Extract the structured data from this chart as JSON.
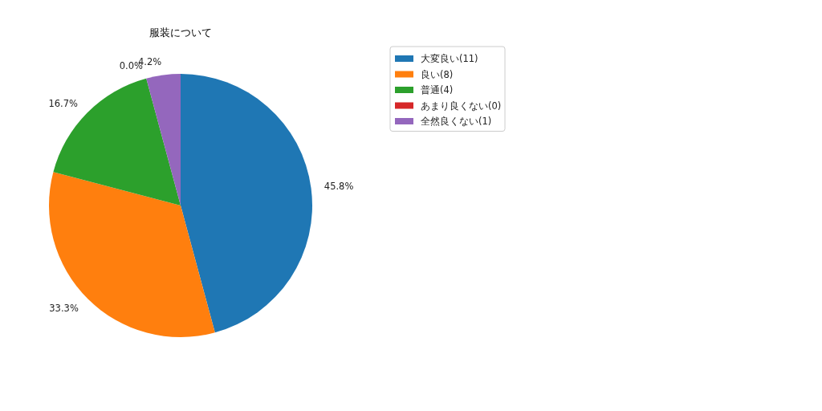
{
  "chart_data": {
    "type": "pie",
    "title": "服装について",
    "categories": [
      "大変良い(11)",
      "良い(8)",
      "普通(4)",
      "あまり良くない(0)",
      "全然良くない(1)"
    ],
    "values": [
      45.8,
      33.3,
      16.7,
      0.0,
      4.2
    ],
    "value_labels": [
      "45.8%",
      "33.3%",
      "16.7%",
      "0.0%",
      "4.2%"
    ],
    "colors": [
      "#1f77b4",
      "#ff7f0e",
      "#2ca02c",
      "#d62728",
      "#9467bd"
    ],
    "legend": "top right"
  }
}
